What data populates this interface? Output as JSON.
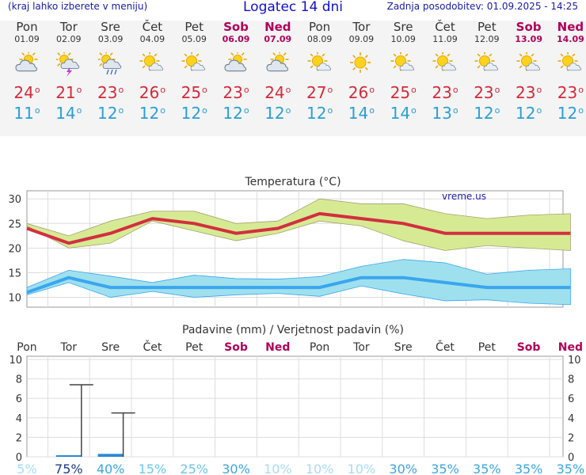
{
  "header": {
    "left_text": "(kraj lahko izberete v meniju)",
    "title": "Logatec 14 dni",
    "right_text": "Zadnja posodobitev: 01.09.2025 - 14:25"
  },
  "days": [
    {
      "name": "Pon",
      "date": "01.09",
      "weekend": false,
      "icon": "cloudy-sun-icon",
      "tmax": "24",
      "tmin": "11"
    },
    {
      "name": "Tor",
      "date": "02.09",
      "weekend": false,
      "icon": "sun-cloud-lightning-icon",
      "tmax": "21",
      "tmin": "14"
    },
    {
      "name": "Sre",
      "date": "03.09",
      "weekend": false,
      "icon": "sun-cloud-rain-icon",
      "tmax": "23",
      "tmin": "12"
    },
    {
      "name": "Čet",
      "date": "04.09",
      "weekend": false,
      "icon": "sun-small-cloud-icon",
      "tmax": "26",
      "tmin": "12"
    },
    {
      "name": "Pet",
      "date": "05.09",
      "weekend": false,
      "icon": "sun-small-cloud-icon",
      "tmax": "25",
      "tmin": "12"
    },
    {
      "name": "Sob",
      "date": "06.09",
      "weekend": true,
      "icon": "cloudy-sun-icon",
      "tmax": "23",
      "tmin": "12"
    },
    {
      "name": "Ned",
      "date": "07.09",
      "weekend": true,
      "icon": "cloudy-sun-icon",
      "tmax": "24",
      "tmin": "12"
    },
    {
      "name": "Pon",
      "date": "08.09",
      "weekend": false,
      "icon": "sun-small-cloud-icon",
      "tmax": "27",
      "tmin": "12"
    },
    {
      "name": "Tor",
      "date": "09.09",
      "weekend": false,
      "icon": "sun-icon",
      "tmax": "26",
      "tmin": "14"
    },
    {
      "name": "Sre",
      "date": "10.09",
      "weekend": false,
      "icon": "sun-small-cloud-icon",
      "tmax": "25",
      "tmin": "14"
    },
    {
      "name": "Čet",
      "date": "11.09",
      "weekend": false,
      "icon": "sun-small-cloud-icon",
      "tmax": "23",
      "tmin": "13"
    },
    {
      "name": "Pet",
      "date": "12.09",
      "weekend": false,
      "icon": "sun-small-cloud-icon",
      "tmax": "23",
      "tmin": "12"
    },
    {
      "name": "Sob",
      "date": "13.09",
      "weekend": true,
      "icon": "sun-small-cloud-icon",
      "tmax": "23",
      "tmin": "12"
    },
    {
      "name": "Ned",
      "date": "14.09",
      "weekend": true,
      "icon": "sun-small-cloud-icon",
      "tmax": "23",
      "tmin": "12"
    }
  ],
  "colors": {
    "max_line": "#d22f3f",
    "max_band": "#d6ea94",
    "min_line": "#3aa6ee",
    "min_band": "#9fe0ef",
    "weekend": "#b0005a",
    "tmax_text": "#d42a3a",
    "tmin_text": "#2a9fd8",
    "precip_bar": "#2a8ad8"
  },
  "chart_data": [
    {
      "type": "line",
      "title": "Temperatura (°C)",
      "watermark": "vreme.us",
      "ylim": [
        8,
        31
      ],
      "yticks": [
        "10",
        "15",
        "20",
        "25",
        "30"
      ],
      "grid": true,
      "series": [
        {
          "name": "max",
          "values": [
            24,
            21,
            23,
            26,
            25,
            23,
            24,
            27,
            26,
            25,
            23,
            23,
            23,
            23
          ],
          "band_low": [
            24.5,
            20,
            21,
            25.5,
            23.5,
            21.5,
            23,
            25.5,
            24.5,
            21.5,
            19.5,
            20.5,
            20,
            19.5
          ],
          "band_high": [
            25,
            22.5,
            25.5,
            27.5,
            27.5,
            25,
            25.5,
            30,
            29,
            29,
            27,
            26,
            26.7,
            27
          ]
        },
        {
          "name": "min",
          "values": [
            11,
            14,
            12,
            12,
            12,
            12,
            12,
            12,
            14,
            14,
            13,
            12,
            12,
            12
          ],
          "band_low": [
            10.5,
            13,
            10,
            11.2,
            10,
            10.5,
            10.8,
            10.2,
            12.3,
            10.7,
            9.3,
            9.5,
            8.8,
            8.5
          ],
          "band_high": [
            12,
            15.5,
            14.3,
            13,
            14.5,
            13.8,
            13.7,
            14.2,
            16.3,
            17.7,
            17,
            14.7,
            15.5,
            15.8
          ]
        }
      ]
    },
    {
      "type": "bar",
      "title": "Padavine (mm) / Verjetnost padavin (%)",
      "categories": [
        "Pon",
        "Tor",
        "Sre",
        "Čet",
        "Pet",
        "Sob",
        "Ned",
        "Pon",
        "Tor",
        "Sre",
        "Čet",
        "Pet",
        "Sob",
        "Ned"
      ],
      "weekend": [
        false,
        false,
        false,
        false,
        false,
        true,
        true,
        false,
        false,
        false,
        false,
        false,
        true,
        true
      ],
      "values": [
        0,
        0.1,
        0.3,
        0,
        0,
        0,
        0,
        0,
        0,
        0,
        0,
        0,
        0,
        0
      ],
      "range_max": [
        null,
        7.4,
        4.5,
        null,
        null,
        null,
        null,
        null,
        null,
        null,
        null,
        null,
        null,
        null
      ],
      "probability": [
        "5%",
        "75%",
        "40%",
        "15%",
        "25%",
        "30%",
        "10%",
        "10%",
        "10%",
        "30%",
        "35%",
        "35%",
        "35%",
        "35%"
      ],
      "ylim": [
        0,
        10
      ],
      "yticks": [
        "0",
        "2",
        "4",
        "6",
        "8",
        "10"
      ],
      "grid": true
    }
  ]
}
